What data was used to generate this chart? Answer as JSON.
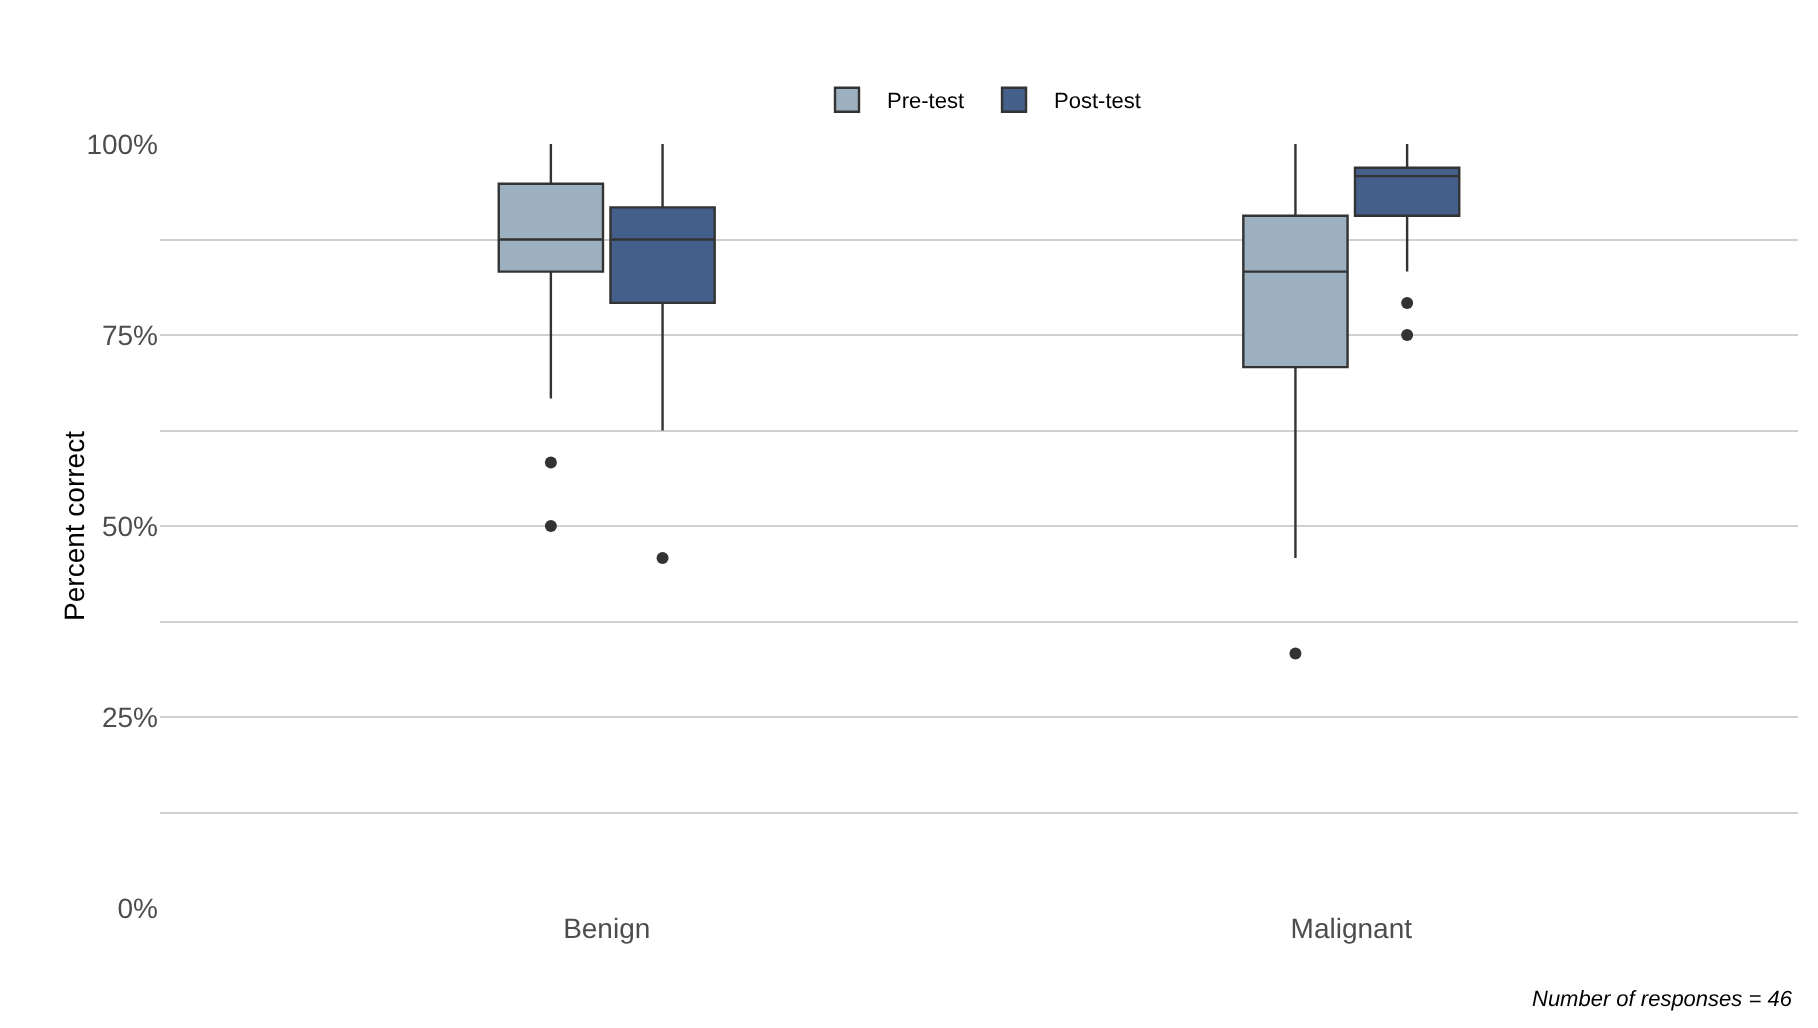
{
  "chart_data": {
    "type": "box",
    "ylabel": "Percent correct",
    "categories": [
      "Benign",
      "Malignant"
    ],
    "series": [
      {
        "name": "Pre-test",
        "color": "#9cb0bf",
        "boxes": [
          {
            "low": 66.7,
            "q1": 83.3,
            "median": 87.5,
            "q3": 94.8,
            "high": 100,
            "outliers": [
              58.3,
              50
            ]
          },
          {
            "low": 45.8,
            "q1": 70.8,
            "median": 83.3,
            "q3": 90.6,
            "high": 100,
            "outliers": [
              33.3
            ]
          }
        ]
      },
      {
        "name": "Post-test",
        "color": "#435f8a",
        "boxes": [
          {
            "low": 62.5,
            "q1": 79.2,
            "median": 87.5,
            "q3": 91.7,
            "high": 100,
            "outliers": [
              45.8
            ]
          },
          {
            "low": 83.3,
            "q1": 90.6,
            "median": 95.8,
            "q3": 96.9,
            "high": 100,
            "outliers": [
              79.2,
              75
            ]
          }
        ]
      }
    ],
    "ylim": [
      0,
      100
    ],
    "yticks": [
      {
        "value": 0,
        "label": "0%"
      },
      {
        "value": 12.5,
        "label": null
      },
      {
        "value": 25,
        "label": "25%"
      },
      {
        "value": 37.5,
        "label": null
      },
      {
        "value": 50,
        "label": "50%"
      },
      {
        "value": 62.5,
        "label": null
      },
      {
        "value": 75,
        "label": "75%"
      },
      {
        "value": 87.5,
        "label": null
      },
      {
        "value": 100,
        "label": "100%"
      }
    ],
    "grid": "y",
    "legend": "top",
    "annotations": [
      "Number of responses = 46"
    ]
  }
}
